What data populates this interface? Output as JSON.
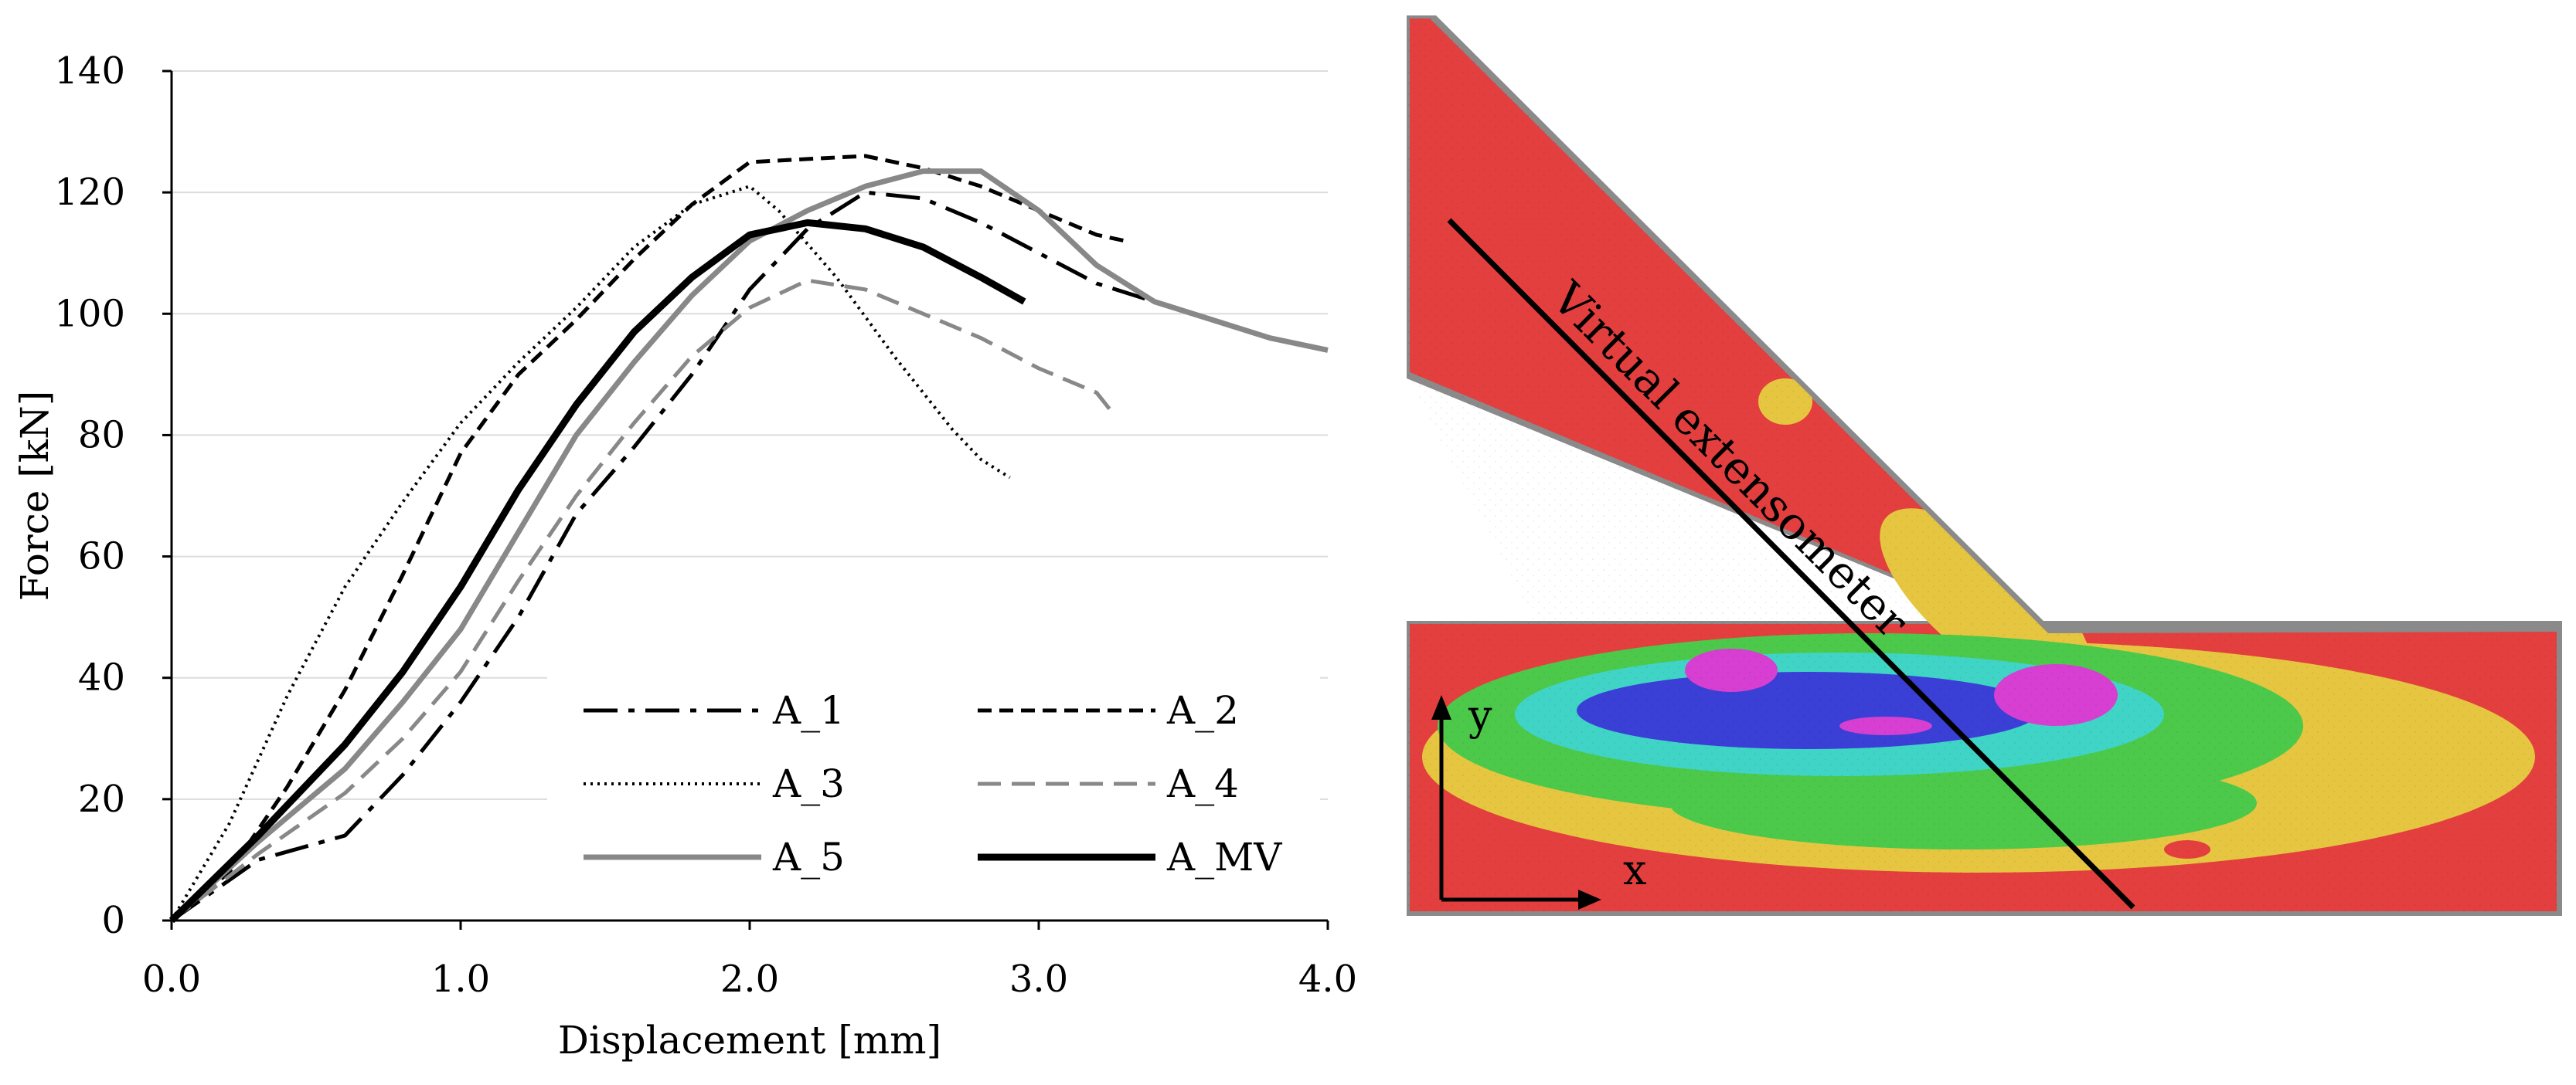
{
  "chart_data": {
    "type": "line",
    "xlabel": "Displacement [mm]",
    "ylabel": "Force [kN]",
    "xlim": [
      0,
      4
    ],
    "ylim": [
      0,
      140
    ],
    "x_ticks": [
      "0.0",
      "1.0",
      "2.0",
      "3.0",
      "4.0"
    ],
    "y_ticks": [
      "0",
      "20",
      "40",
      "60",
      "80",
      "100",
      "120",
      "140"
    ],
    "grid": "horizontal",
    "legend_position": "bottom-right",
    "series": [
      {
        "name": "A_1",
        "style": "long-dash",
        "color": "#000000",
        "x": [
          0,
          0.3,
          0.6,
          0.8,
          1.0,
          1.2,
          1.4,
          1.6,
          1.8,
          2.0,
          2.2,
          2.4,
          2.6,
          2.8,
          3.0,
          3.2,
          3.4,
          3.6,
          3.8,
          4.0
        ],
        "y": [
          0,
          10,
          14,
          24,
          36,
          50,
          67,
          78,
          90,
          104,
          114,
          120,
          119,
          115,
          110,
          105,
          102,
          99,
          96,
          94
        ]
      },
      {
        "name": "A_2",
        "style": "short-dash",
        "color": "#000000",
        "x": [
          0,
          0.2,
          0.4,
          0.6,
          0.8,
          1.0,
          1.2,
          1.4,
          1.6,
          1.8,
          2.0,
          2.2,
          2.4,
          2.6,
          2.8,
          3.0,
          3.2,
          3.3
        ],
        "y": [
          0,
          8,
          22,
          38,
          57,
          77,
          90,
          99,
          109,
          118,
          125,
          125.5,
          126,
          124,
          121,
          117,
          113,
          112
        ]
      },
      {
        "name": "A_3",
        "style": "dotted",
        "color": "#000000",
        "x": [
          0,
          0.2,
          0.4,
          0.6,
          0.8,
          1.0,
          1.2,
          1.4,
          1.6,
          1.8,
          2.0,
          2.1,
          2.3,
          2.5,
          2.7,
          2.8,
          2.9
        ],
        "y": [
          0,
          16,
          37,
          55,
          69,
          82,
          92,
          101,
          111,
          118,
          121,
          117,
          106,
          93,
          81,
          76,
          73
        ]
      },
      {
        "name": "A_4",
        "style": "dash",
        "color": "#888888",
        "x": [
          0,
          0.3,
          0.6,
          0.8,
          1.0,
          1.2,
          1.4,
          1.6,
          1.8,
          2.0,
          2.2,
          2.4,
          2.6,
          2.8,
          3.0,
          3.2,
          3.25
        ],
        "y": [
          0,
          11,
          21,
          30,
          41,
          56,
          70,
          82,
          93,
          101,
          105.5,
          104,
          100,
          96,
          91,
          87,
          84
        ]
      },
      {
        "name": "A_5",
        "style": "solid",
        "color": "#888888",
        "x": [
          0,
          0.3,
          0.6,
          0.8,
          1.0,
          1.2,
          1.4,
          1.6,
          1.8,
          2.0,
          2.2,
          2.4,
          2.6,
          2.8,
          3.0,
          3.2,
          3.4,
          3.6,
          3.8,
          4.0
        ],
        "y": [
          0,
          13,
          25,
          36,
          48,
          64,
          80,
          92,
          103,
          112,
          117,
          121,
          123.5,
          123.5,
          117,
          108,
          102,
          99,
          96,
          94
        ]
      },
      {
        "name": "A_MV",
        "style": "solid-bold",
        "color": "#000000",
        "x": [
          0,
          0.3,
          0.6,
          0.8,
          1.0,
          1.2,
          1.4,
          1.6,
          1.8,
          2.0,
          2.2,
          2.4,
          2.6,
          2.8,
          2.95
        ],
        "y": [
          0,
          14,
          29,
          41,
          55,
          71,
          85,
          97,
          106,
          113,
          115,
          114,
          111,
          106,
          102
        ]
      }
    ]
  },
  "photo": {
    "annotation": "Virtual extensometer",
    "axis_x_label": "x",
    "axis_y_label": "y",
    "colors": {
      "red": "#e43f3f",
      "yellow": "#e6c640",
      "green": "#4cc94a",
      "cyan": "#3fd4c5",
      "blue": "#3a3fd6",
      "magenta": "#d63fd1",
      "gray": "#7a7a7a"
    }
  }
}
